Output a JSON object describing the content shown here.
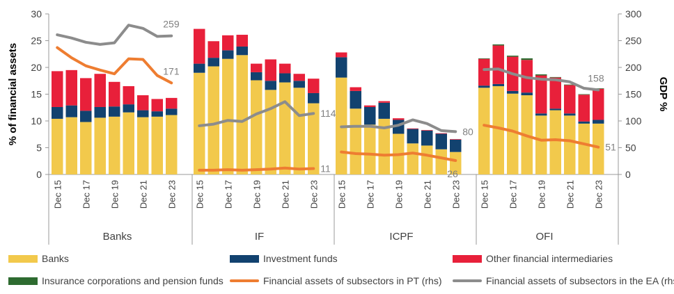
{
  "chart_data": {
    "type": "bar",
    "y_left_label": "% of financial assets",
    "y_right_label": "GDP %",
    "y_left_ticks": [
      "0",
      "5",
      "10",
      "15",
      "20",
      "25",
      "30"
    ],
    "y_right_ticks": [
      "0",
      "50",
      "100",
      "150",
      "200",
      "250",
      "300"
    ],
    "ylim_left": [
      0,
      30
    ],
    "ylim_right": [
      0,
      300
    ],
    "grid": false,
    "legend_position": "bottom",
    "colors": {
      "banks": "#F2C94C",
      "investment_funds": "#12426F",
      "ofi": "#E8203A",
      "icpf": "#2E6B30",
      "pt_line": "#EE7D31",
      "ea_line": "#8C8C8C"
    },
    "groups": [
      {
        "name": "Banks",
        "categories": [
          "Dec 15",
          "Dec 16",
          "Dec 17",
          "Dec 18",
          "Dec 19",
          "Dec 20",
          "Dec 21",
          "Dec 22",
          "Dec 23"
        ],
        "tick_labels": [
          "Dec 15",
          "",
          "Dec 17",
          "",
          "Dec 19",
          "",
          "Dec 21",
          "",
          "Dec 23"
        ],
        "banks": [
          10.4,
          10.7,
          9.8,
          10.6,
          10.8,
          11.6,
          10.7,
          10.8,
          11.1
        ],
        "investment_funds": [
          2.2,
          2.2,
          2.1,
          2.0,
          1.9,
          1.5,
          1.3,
          1.0,
          1.2
        ],
        "ofi": [
          6.7,
          6.6,
          6.1,
          6.2,
          4.6,
          3.4,
          2.8,
          2.3,
          2.0
        ],
        "icpf": [
          0,
          0,
          0,
          0,
          0,
          0,
          0,
          0,
          0
        ],
        "pt": [
          237,
          218,
          203,
          195,
          188,
          216,
          215,
          185,
          171
        ],
        "ea": [
          261,
          255,
          247,
          243,
          246,
          279,
          273,
          258,
          259
        ],
        "end_label_pt": "171",
        "end_label_ea": "259"
      },
      {
        "name": "IF",
        "categories": [
          "Dec 15",
          "Dec 16",
          "Dec 17",
          "Dec 18",
          "Dec 19",
          "Dec 20",
          "Dec 21",
          "Dec 22",
          "Dec 23"
        ],
        "tick_labels": [
          "Dec 15",
          "",
          "Dec 17",
          "",
          "Dec 19",
          "",
          "Dec 21",
          "",
          "Dec 23"
        ],
        "banks": [
          19.0,
          20.2,
          21.6,
          22.3,
          17.6,
          15.8,
          17.2,
          16.2,
          13.3
        ],
        "investment_funds": [
          1.7,
          1.6,
          1.6,
          1.6,
          1.5,
          1.7,
          1.7,
          1.3,
          1.9
        ],
        "ofi": [
          6.5,
          3.1,
          2.8,
          2.2,
          1.6,
          4.0,
          1.8,
          1.3,
          2.7
        ],
        "icpf": [
          0,
          0,
          0,
          0,
          0,
          0,
          0,
          0,
          0
        ],
        "pt": [
          8,
          8,
          9,
          8,
          9,
          10,
          12,
          10,
          11
        ],
        "ea": [
          91,
          94,
          101,
          99,
          113,
          123,
          136,
          110,
          114
        ],
        "end_label_pt": "11",
        "end_label_ea": "114"
      },
      {
        "name": "ICPF",
        "categories": [
          "Dec 15",
          "Dec 16",
          "Dec 17",
          "Dec 18",
          "Dec 19",
          "Dec 20",
          "Dec 21",
          "Dec 22",
          "Dec 23"
        ],
        "tick_labels": [
          "Dec 15",
          "",
          "Dec 17",
          "",
          "Dec 19",
          "",
          "Dec 21",
          "",
          "Dec 23"
        ],
        "banks": [
          18.1,
          12.3,
          9.3,
          10.4,
          7.6,
          5.8,
          5.4,
          4.7,
          4.2
        ],
        "investment_funds": [
          3.8,
          3.3,
          3.3,
          3.0,
          2.6,
          2.7,
          2.8,
          2.9,
          2.3
        ],
        "ofi": [
          0.9,
          0.7,
          0.3,
          0.3,
          0.3,
          0.1,
          0.1,
          0.1,
          0.1
        ],
        "icpf": [
          0,
          0,
          0,
          0,
          0,
          0,
          0,
          0,
          0
        ],
        "pt": [
          42,
          39,
          38,
          36,
          37,
          40,
          36,
          31,
          26
        ],
        "ea": [
          89,
          90,
          90,
          87,
          92,
          102,
          95,
          82,
          80
        ],
        "end_label_pt": "26",
        "end_label_ea": "80"
      },
      {
        "name": "OFI",
        "categories": [
          "Dec 15",
          "Dec 16",
          "Dec 17",
          "Dec 18",
          "Dec 19",
          "Dec 20",
          "Dec 21",
          "Dec 22",
          "Dec 23"
        ],
        "tick_labels": [
          "Dec 15",
          "",
          "Dec 17",
          "",
          "Dec 19",
          "",
          "Dec 21",
          "",
          "Dec 23"
        ],
        "banks": [
          16.2,
          16.5,
          15.1,
          14.8,
          11.0,
          12.0,
          11.0,
          9.5,
          9.5
        ],
        "investment_funds": [
          0.4,
          0.4,
          0.5,
          0.5,
          0.4,
          0.3,
          0.4,
          0.4,
          0.7
        ],
        "ofi": [
          5.0,
          7.2,
          6.4,
          6.1,
          7.1,
          5.8,
          5.3,
          5.0,
          5.8
        ],
        "icpf": [
          0.1,
          0.2,
          0.2,
          0.3,
          0.2,
          0.1,
          0.1,
          0.1,
          0.1
        ],
        "pt": [
          92,
          87,
          81,
          72,
          64,
          65,
          63,
          57,
          51
        ],
        "ea": [
          196,
          197,
          188,
          181,
          178,
          177,
          173,
          161,
          158
        ],
        "end_label_pt": "51",
        "end_label_ea": "158"
      }
    ]
  },
  "legend": [
    {
      "label": "Banks",
      "kind": "box",
      "color": "#F2C94C"
    },
    {
      "label": "Investment funds",
      "kind": "box",
      "color": "#12426F"
    },
    {
      "label": "Other financial intermediaries",
      "kind": "box",
      "color": "#E8203A"
    },
    {
      "label": "Insurance corporations and pension funds",
      "kind": "box",
      "color": "#2E6B30"
    },
    {
      "label": "Financial assets of subsectors in PT (rhs)",
      "kind": "line",
      "color": "#EE7D31"
    },
    {
      "label": "Financial assets of subsectors in the EA (rhs)",
      "kind": "line",
      "color": "#8C8C8C"
    }
  ]
}
